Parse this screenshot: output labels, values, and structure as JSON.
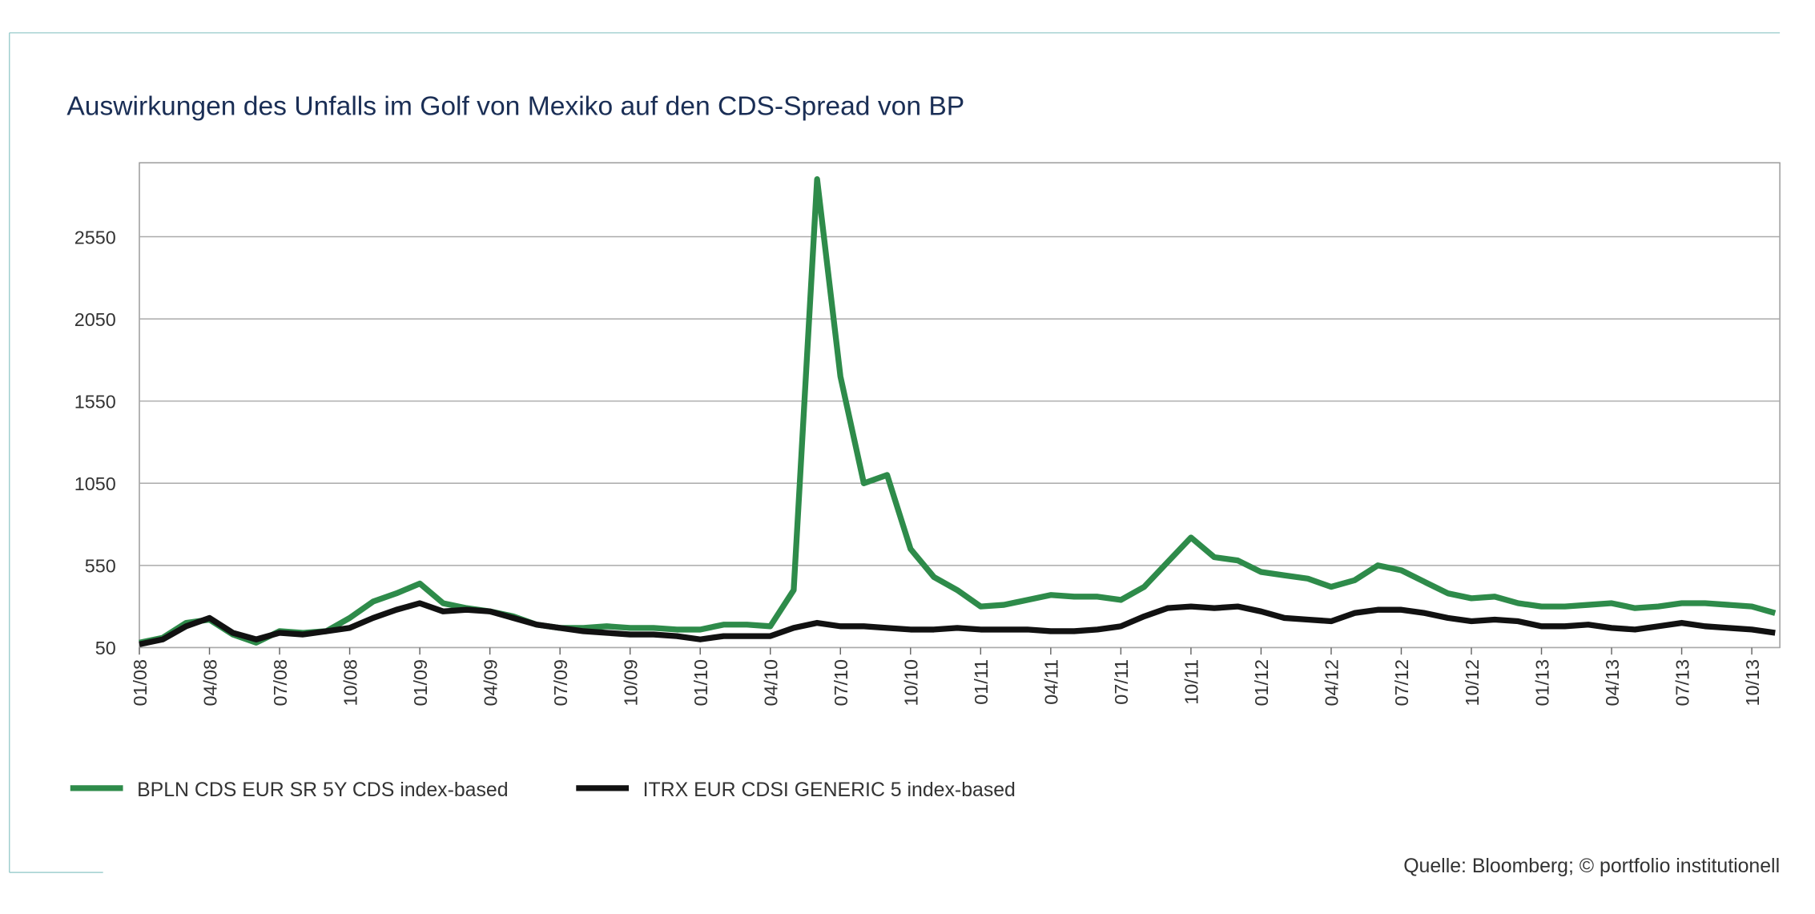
{
  "chart_data": {
    "type": "line",
    "title": "Auswirkungen des Unfalls im Golf von Mexiko auf den CDS-Spread von BP",
    "source": "Quelle: Bloomberg; © portfolio institutionell",
    "categories": [
      "01/08",
      null,
      null,
      "04/08",
      null,
      null,
      "07/08",
      null,
      null,
      "10/08",
      null,
      null,
      "01/09",
      null,
      null,
      "04/09",
      null,
      null,
      "07/09",
      null,
      null,
      "10/09",
      null,
      null,
      "01/10",
      null,
      null,
      "04/10",
      null,
      null,
      "07/10",
      null,
      null,
      "10/10",
      null,
      null,
      "01/11",
      null,
      null,
      "04/11",
      null,
      null,
      "07/11",
      null,
      null,
      "10/11",
      null,
      null,
      "01/12",
      null,
      null,
      "04/12",
      null,
      null,
      "07/12",
      null,
      null,
      "10/12",
      null,
      null,
      "01/13",
      null,
      null,
      "04/13",
      null,
      null,
      "07/13",
      null,
      null,
      "10/13",
      null
    ],
    "series": [
      {
        "name": "BPLN CDS EUR SR 5Y CDS index-based",
        "color": "#2e8b4a",
        "values": [
          80,
          110,
          200,
          220,
          130,
          80,
          150,
          140,
          150,
          230,
          330,
          380,
          440,
          320,
          290,
          270,
          240,
          190,
          170,
          170,
          180,
          170,
          170,
          160,
          160,
          190,
          190,
          180,
          400,
          2900,
          1700,
          1050,
          1100,
          650,
          480,
          400,
          300,
          310,
          340,
          370,
          360,
          360,
          340,
          420,
          570,
          720,
          600,
          580,
          510,
          490,
          470,
          420,
          460,
          550,
          520,
          450,
          380,
          350,
          360,
          320,
          300,
          300,
          310,
          320,
          290,
          300,
          320,
          320,
          310,
          300,
          260
        ]
      },
      {
        "name": "ITRX EUR CDSI GENERIC 5 index-based",
        "color": "#111111",
        "values": [
          70,
          100,
          180,
          230,
          140,
          100,
          140,
          130,
          150,
          170,
          230,
          280,
          320,
          270,
          280,
          270,
          230,
          190,
          170,
          150,
          140,
          130,
          130,
          120,
          100,
          120,
          120,
          120,
          170,
          200,
          180,
          180,
          170,
          160,
          160,
          170,
          160,
          160,
          160,
          150,
          150,
          160,
          180,
          240,
          290,
          300,
          290,
          300,
          270,
          230,
          220,
          210,
          260,
          280,
          280,
          260,
          230,
          210,
          220,
          210,
          180,
          180,
          190,
          170,
          160,
          180,
          200,
          180,
          170,
          160,
          140
        ]
      }
    ],
    "ylim": [
      50,
      3000
    ],
    "yticks": [
      50,
      550,
      1050,
      1550,
      2050,
      2550
    ],
    "grid": true
  }
}
